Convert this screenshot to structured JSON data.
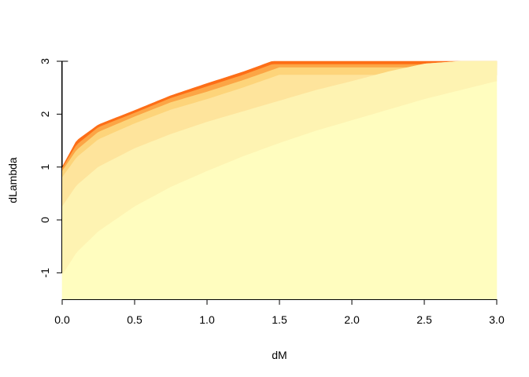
{
  "chart_data": {
    "type": "heatmap",
    "title": "",
    "xlabel": "dM",
    "ylabel": "dLambda",
    "xlim": [
      0,
      3
    ],
    "ylim": [
      -1.5,
      3
    ],
    "x_ticks": [
      0,
      0.5,
      1,
      1.5,
      2,
      2.5,
      3
    ],
    "x_tick_labels": [
      "0.0",
      "0.5",
      "1.0",
      "1.5",
      "2.0",
      "2.5",
      "3.0"
    ],
    "y_ticks": [
      -1,
      0,
      1,
      2,
      3
    ],
    "y_tick_labels": [
      "-1",
      "0",
      "1",
      "2",
      "3"
    ],
    "grid": false,
    "legend": "none",
    "boundary_curve": {
      "x": [
        0,
        0.1,
        0.25,
        0.5,
        0.75,
        1.0,
        1.25,
        1.45,
        3.0
      ],
      "y": [
        1.0,
        1.5,
        1.8,
        2.07,
        2.35,
        2.58,
        2.8,
        3.0,
        3.0
      ]
    },
    "bands": [
      {
        "color": "#fd6e17",
        "lower": {
          "x": [
            0,
            0.1,
            0.25,
            0.5,
            0.75,
            1.0,
            1.25,
            1.45,
            3.0
          ],
          "y": [
            0.97,
            1.42,
            1.75,
            2.02,
            2.3,
            2.52,
            2.74,
            2.94,
            2.94
          ]
        }
      },
      {
        "color": "#fca545",
        "lower": {
          "x": [
            0,
            0.1,
            0.25,
            0.5,
            0.75,
            1.0,
            1.25,
            1.5,
            3.0
          ],
          "y": [
            0.92,
            1.32,
            1.66,
            1.95,
            2.22,
            2.42,
            2.64,
            2.88,
            2.88
          ]
        }
      },
      {
        "color": "#fdd47a",
        "lower": {
          "x": [
            0,
            0.1,
            0.25,
            0.5,
            0.75,
            1.0,
            1.25,
            1.5,
            3.0
          ],
          "y": [
            0.8,
            1.18,
            1.52,
            1.82,
            2.08,
            2.28,
            2.5,
            2.74,
            2.74
          ]
        }
      },
      {
        "color": "#fee49c",
        "lower": {
          "x": [
            0,
            0.1,
            0.25,
            0.5,
            0.5,
            0.75,
            1.0,
            1.25,
            1.5,
            1.75,
            2.0,
            2.25,
            2.5,
            2.75,
            3.0
          ],
          "y": [
            0.25,
            0.65,
            1.0,
            1.35,
            1.35,
            1.62,
            1.85,
            2.05,
            2.25,
            2.45,
            2.62,
            2.8,
            2.95,
            3.0,
            3.0
          ]
        }
      },
      {
        "color": "#fef3b2",
        "lower": {
          "x": [
            0,
            0.1,
            0.25,
            0.5,
            0.75,
            1.0,
            1.25,
            1.5,
            1.75,
            2.0,
            2.25,
            2.5,
            2.75,
            3.0
          ],
          "y": [
            -1.05,
            -0.62,
            -0.22,
            0.25,
            0.62,
            0.92,
            1.2,
            1.45,
            1.68,
            1.88,
            2.08,
            2.28,
            2.45,
            2.62
          ]
        }
      },
      {
        "color": "#fffdbf",
        "lower": {
          "x": [
            0,
            3.0
          ],
          "y": [
            -1.5,
            -1.5
          ]
        }
      }
    ]
  }
}
